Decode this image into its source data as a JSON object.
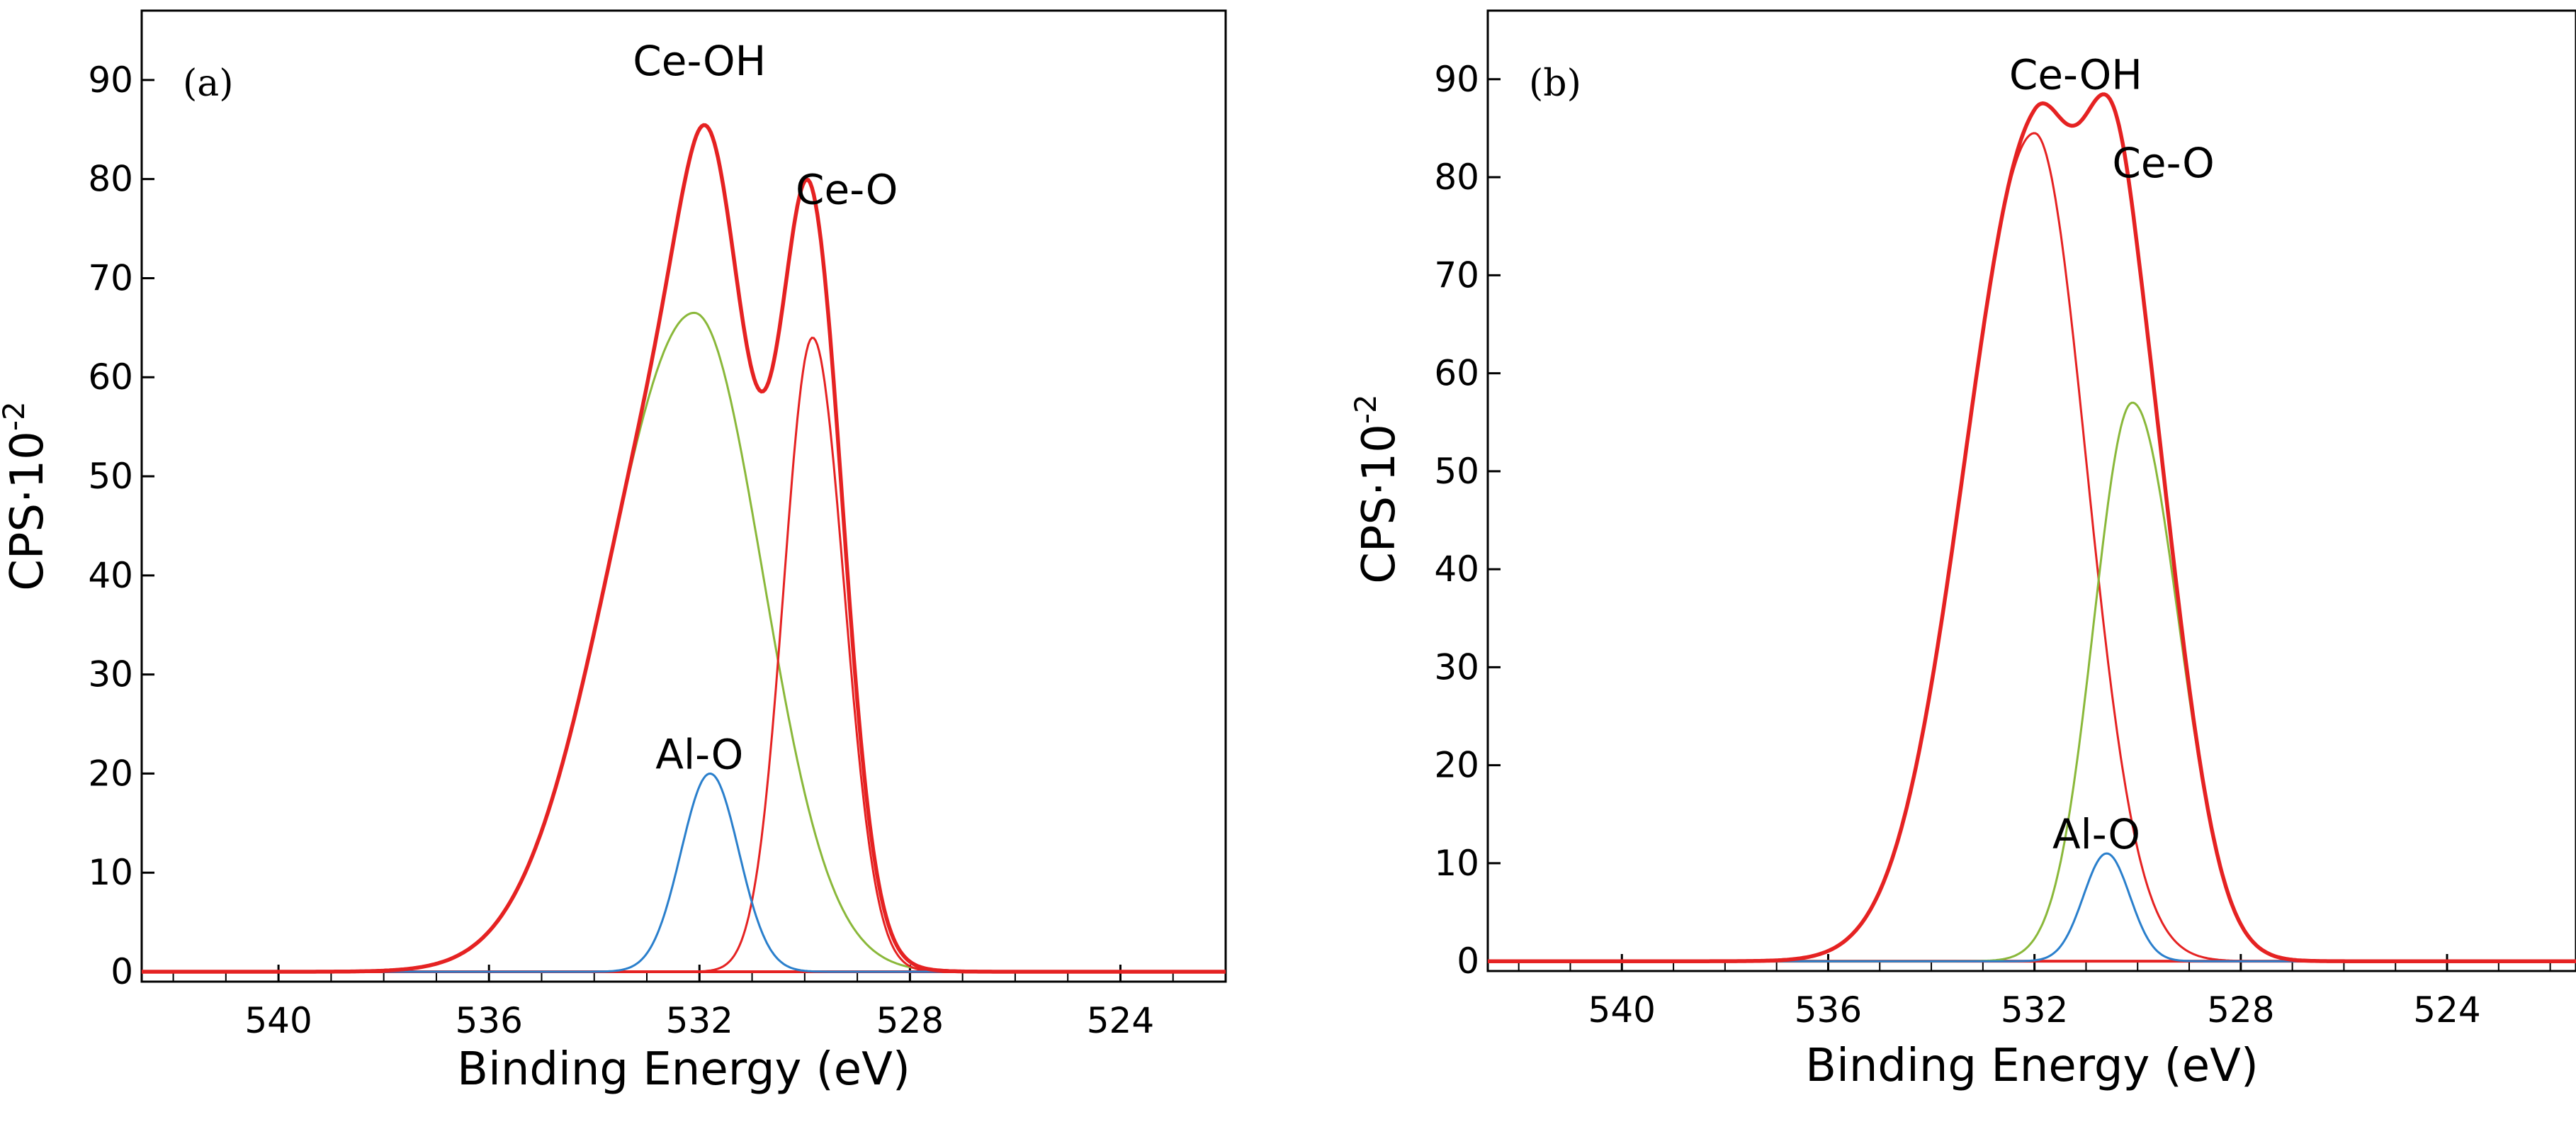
{
  "chart_data": [
    {
      "type": "line",
      "panel_label": "(a)",
      "xlabel": "Binding Energy (eV)",
      "ylabel": "CPS·10",
      "ylabel_exponent": "-2",
      "xlim": [
        542.6,
        522.0
      ],
      "ylim": [
        -1,
        97
      ],
      "x_ticks": [
        540,
        536,
        532,
        528,
        524
      ],
      "x_tick_labels": [
        "540",
        "536",
        "532",
        "528",
        "524"
      ],
      "y_ticks": [
        0,
        10,
        20,
        30,
        40,
        50,
        60,
        70,
        80,
        90
      ],
      "y_tick_labels": [
        "0",
        "10",
        "20",
        "30",
        "40",
        "50",
        "60",
        "70",
        "80",
        "90"
      ],
      "grid": false,
      "colors": {
        "envelope": "#e52222",
        "ce_oh": "#8ab83a",
        "ce_o": "#e52222",
        "al_o": "#2a7fcc",
        "baseline": "#e52222"
      },
      "components": [
        {
          "name": "Ce-OH",
          "center": 532.1,
          "amplitude": 66.5,
          "sigma_left": 1.65,
          "sigma_right": 1.3
        },
        {
          "name": "Ce-O",
          "center": 529.85,
          "amplitude": 64.0,
          "sigma_left": 0.55,
          "sigma_right": 0.6
        },
        {
          "name": "Al-O",
          "center": 531.8,
          "amplitude": 20.0,
          "sigma_left": 0.55,
          "sigma_right": 0.55
        }
      ],
      "annotations": [
        {
          "text": "Ce-OH",
          "x": 532.0,
          "y": 90.5
        },
        {
          "text": "Ce-O",
          "x": 529.2,
          "y": 77.5
        },
        {
          "text": "Al-O",
          "x": 532.0,
          "y": 20.5
        }
      ]
    },
    {
      "type": "line",
      "panel_label": "(b)",
      "xlabel": "Binding Energy (eV)",
      "ylabel": "CPS·10",
      "ylabel_exponent": "-2",
      "xlim": [
        542.6,
        521.5
      ],
      "ylim": [
        -1,
        97
      ],
      "x_ticks": [
        540,
        536,
        532,
        528,
        524
      ],
      "x_tick_labels": [
        "540",
        "536",
        "532",
        "528",
        "524"
      ],
      "y_ticks": [
        0,
        10,
        20,
        30,
        40,
        50,
        60,
        70,
        80,
        90
      ],
      "y_tick_labels": [
        "0",
        "10",
        "20",
        "30",
        "40",
        "50",
        "60",
        "70",
        "80",
        "90"
      ],
      "grid": false,
      "colors": {
        "envelope": "#e52222",
        "ce_oh": "#e52222",
        "ce_o": "#8ab83a",
        "al_o": "#2a7fcc",
        "baseline": "#e52222"
      },
      "components": [
        {
          "name": "Ce-OH",
          "center": 532.0,
          "amplitude": 84.5,
          "sigma_left": 1.35,
          "sigma_right": 1.0
        },
        {
          "name": "Ce-O",
          "center": 530.1,
          "amplitude": 57.0,
          "sigma_left": 0.75,
          "sigma_right": 0.9
        },
        {
          "name": "Al-O",
          "center": 530.6,
          "amplitude": 11.0,
          "sigma_left": 0.45,
          "sigma_right": 0.45
        }
      ],
      "annotations": [
        {
          "text": "Ce-OH",
          "x": 531.2,
          "y": 89.0
        },
        {
          "text": "Ce-O",
          "x": 529.5,
          "y": 80.0
        },
        {
          "text": "Al-O",
          "x": 530.8,
          "y": 11.5
        }
      ]
    }
  ]
}
